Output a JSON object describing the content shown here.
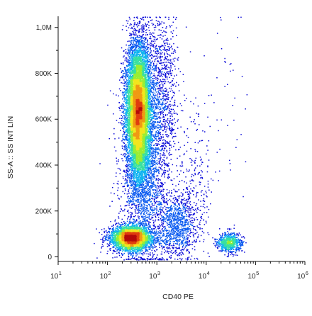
{
  "chart_data": {
    "type": "scatter",
    "subtype": "flow-cytometry-density-dot-plot",
    "title": "",
    "xlabel": "CD40 PE",
    "ylabel": "SS-A :: SS INT LIN",
    "x_scale": "log",
    "xlim": [
      10,
      1000000
    ],
    "x_ticks": [
      {
        "value": 10,
        "base": "10",
        "exp": "1"
      },
      {
        "value": 100,
        "base": "10",
        "exp": "2"
      },
      {
        "value": 1000,
        "base": "10",
        "exp": "3"
      },
      {
        "value": 10000,
        "base": "10",
        "exp": "4"
      },
      {
        "value": 100000,
        "base": "10",
        "exp": "5"
      },
      {
        "value": 1000000,
        "base": "10",
        "exp": "6"
      }
    ],
    "y_scale": "linear",
    "ylim": [
      -20000,
      1048576
    ],
    "y_ticks": [
      {
        "value": 0,
        "label": "0"
      },
      {
        "value": 200000,
        "label": "200K"
      },
      {
        "value": 400000,
        "label": "400K"
      },
      {
        "value": 600000,
        "label": "600K"
      },
      {
        "value": 800000,
        "label": "800K"
      },
      {
        "value": 1000000,
        "label": "1,0M"
      }
    ],
    "grid": false,
    "legend": "none",
    "colormap": [
      "#0a0ad8",
      "#0a5af0",
      "#10b4f0",
      "#38e0a0",
      "#9aee32",
      "#f2e61e",
      "#f09a14",
      "#e03c10",
      "#b40a0a"
    ],
    "populations": [
      {
        "cx": 420,
        "cy": 640000,
        "sx": 140,
        "sy": 150000,
        "n": 9000
      },
      {
        "cx": 300,
        "cy": 80000,
        "sx": 180,
        "sy": 28000,
        "n": 3500
      },
      {
        "cx": 600,
        "cy": 380000,
        "sx": 450,
        "sy": 200000,
        "n": 2200
      },
      {
        "cx": 2500,
        "cy": 140000,
        "sx": 1600,
        "sy": 70000,
        "n": 1000
      },
      {
        "cx": 1300,
        "cy": 750000,
        "sx": 600,
        "sy": 170000,
        "n": 800
      },
      {
        "cx": 30000,
        "cy": 60000,
        "sx": 10000,
        "sy": 22000,
        "n": 700
      },
      {
        "cx": 6000,
        "cy": 330000,
        "sx": 3000,
        "sy": 180000,
        "n": 220
      },
      {
        "cx": 30000,
        "cy": 700000,
        "sx": 18000,
        "sy": 250000,
        "n": 40
      }
    ]
  }
}
